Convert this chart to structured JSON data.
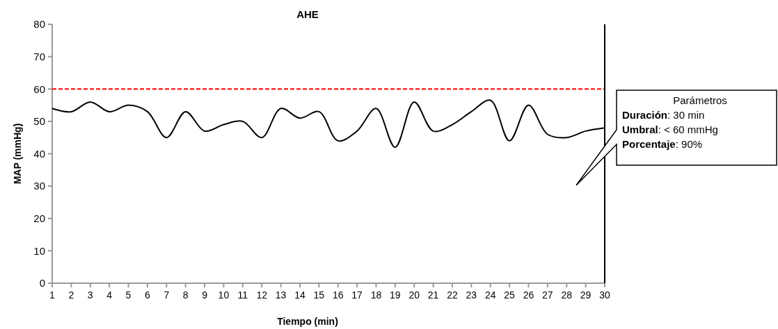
{
  "chart_data": {
    "type": "line",
    "title": "AHE",
    "xlabel": "Tiempo (min)",
    "ylabel": "MAP (mmHg)",
    "x": [
      1,
      2,
      3,
      4,
      5,
      6,
      7,
      8,
      9,
      10,
      11,
      12,
      13,
      14,
      15,
      16,
      17,
      18,
      19,
      20,
      21,
      22,
      23,
      24,
      25,
      26,
      27,
      28,
      29,
      30
    ],
    "series": [
      {
        "color": "#000000",
        "values": [
          54,
          53,
          56,
          53,
          55,
          53,
          45,
          53,
          47,
          49,
          50,
          45,
          54,
          51,
          53,
          44,
          47,
          54,
          42,
          56,
          47,
          49,
          53,
          56.5,
          44,
          55,
          46,
          45,
          47,
          48
        ]
      }
    ],
    "xlim": [
      1,
      30
    ],
    "xticks": [
      1,
      2,
      3,
      4,
      5,
      6,
      7,
      8,
      9,
      10,
      11,
      12,
      13,
      14,
      15,
      16,
      17,
      18,
      19,
      20,
      21,
      22,
      23,
      24,
      25,
      26,
      27,
      28,
      29,
      30
    ],
    "ylim": [
      0,
      80
    ],
    "yticks": [
      0,
      10,
      20,
      30,
      40,
      50,
      60,
      70,
      80
    ],
    "ref_lines": [
      {
        "axis": "y",
        "value": 60,
        "color": "#ff0000",
        "line_style": "dashed"
      },
      {
        "axis": "x",
        "value": 30,
        "color": "#000000",
        "line_style": "solid"
      }
    ],
    "annotations": [
      "Parámetros\nDuración: 30 min\nUmbral: < 60 mmHg\nPorcentaje: 90%"
    ],
    "grid": false,
    "marker": "none",
    "line_style": "solid"
  }
}
